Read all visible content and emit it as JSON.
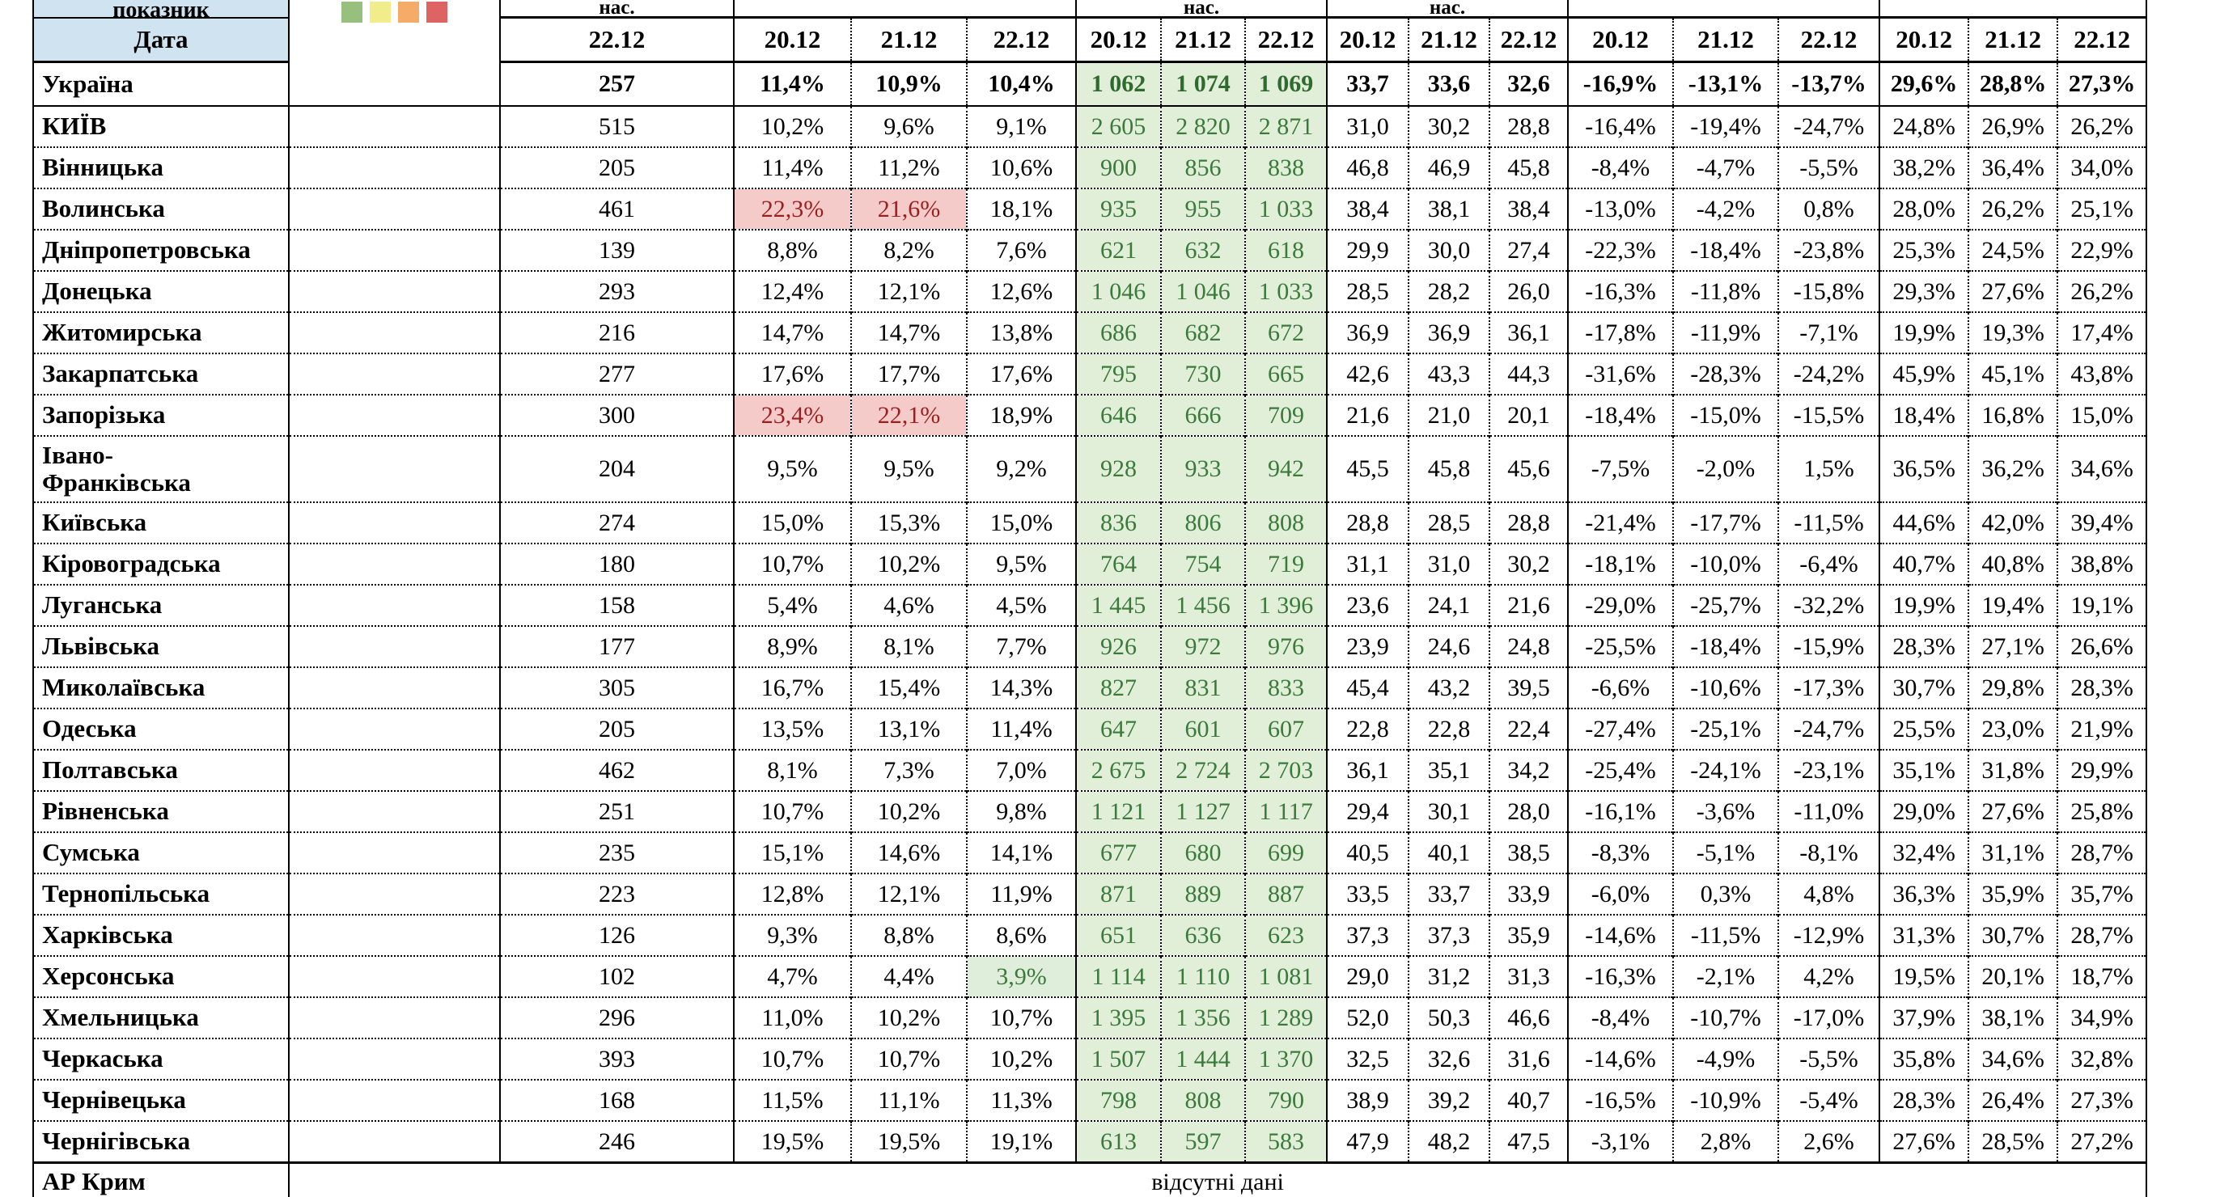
{
  "header": {
    "corner_top": "показник",
    "corner_bottom": "Дата",
    "groups": [
      {
        "label": "нас.",
        "dates": [
          "22.12"
        ]
      },
      {
        "label": "",
        "dates": [
          "20.12",
          "21.12",
          "22.12"
        ]
      },
      {
        "label": "нас.",
        "dates": [
          "20.12",
          "21.12",
          "22.12"
        ]
      },
      {
        "label": "нас.",
        "dates": [
          "20.12",
          "21.12",
          "22.12"
        ]
      },
      {
        "label": "",
        "dates": [
          "20.12",
          "21.12",
          "22.12"
        ]
      },
      {
        "label": "",
        "dates": [
          "20.12",
          "21.12",
          "22.12"
        ]
      }
    ],
    "legend_colors": [
      "#97bf7e",
      "#f0ed8a",
      "#f5ac68",
      "#dd6462"
    ],
    "legend_names": [
      "green",
      "yellow",
      "orange",
      "red"
    ]
  },
  "status_colors": {
    "yellow": "#f3ef7d",
    "red": "#d9605e",
    "none": "#ffffff"
  },
  "table": {
    "rows": [
      {
        "name": "Україна",
        "status": "none",
        "c3": "257",
        "p": [
          "11,4%",
          "10,9%",
          "10,4%"
        ],
        "p_style": [
          "",
          "",
          ""
        ],
        "g": [
          "1 062",
          "1 074",
          "1 069"
        ],
        "m": [
          "33,7",
          "33,6",
          "32,6"
        ],
        "n": [
          "-16,9%",
          "-13,1%",
          "-13,7%"
        ],
        "l": [
          "29,6%",
          "28,8%",
          "27,3%"
        ]
      },
      {
        "name": "КИЇВ",
        "status": "yellow",
        "c3": "515",
        "p": [
          "10,2%",
          "9,6%",
          "9,1%"
        ],
        "p_style": [
          "",
          "",
          ""
        ],
        "g": [
          "2 605",
          "2 820",
          "2 871"
        ],
        "m": [
          "31,0",
          "30,2",
          "28,8"
        ],
        "n": [
          "-16,4%",
          "-19,4%",
          "-24,7%"
        ],
        "l": [
          "24,8%",
          "26,9%",
          "26,2%"
        ]
      },
      {
        "name": "Вінницька",
        "status": "yellow",
        "c3": "205",
        "p": [
          "11,4%",
          "11,2%",
          "10,6%"
        ],
        "p_style": [
          "",
          "",
          ""
        ],
        "g": [
          "900",
          "856",
          "838"
        ],
        "m": [
          "46,8",
          "46,9",
          "45,8"
        ],
        "n": [
          "-8,4%",
          "-4,7%",
          "-5,5%"
        ],
        "l": [
          "38,2%",
          "36,4%",
          "34,0%"
        ]
      },
      {
        "name": "Волинська",
        "status": "red",
        "c3": "461",
        "p": [
          "22,3%",
          "21,6%",
          "18,1%"
        ],
        "p_style": [
          "pink",
          "pink",
          ""
        ],
        "g": [
          "935",
          "955",
          "1 033"
        ],
        "m": [
          "38,4",
          "38,1",
          "38,4"
        ],
        "n": [
          "-13,0%",
          "-4,2%",
          "0,8%"
        ],
        "l": [
          "28,0%",
          "26,2%",
          "25,1%"
        ]
      },
      {
        "name": "Дніпропетровська",
        "status": "yellow",
        "c3": "139",
        "p": [
          "8,8%",
          "8,2%",
          "7,6%"
        ],
        "p_style": [
          "",
          "",
          ""
        ],
        "g": [
          "621",
          "632",
          "618"
        ],
        "m": [
          "29,9",
          "30,0",
          "27,4"
        ],
        "n": [
          "-22,3%",
          "-18,4%",
          "-23,8%"
        ],
        "l": [
          "25,3%",
          "24,5%",
          "22,9%"
        ]
      },
      {
        "name": "Донецька",
        "status": "yellow",
        "c3": "293",
        "p": [
          "12,4%",
          "12,1%",
          "12,6%"
        ],
        "p_style": [
          "",
          "",
          ""
        ],
        "g": [
          "1 046",
          "1 046",
          "1 033"
        ],
        "m": [
          "28,5",
          "28,2",
          "26,0"
        ],
        "n": [
          "-16,3%",
          "-11,8%",
          "-15,8%"
        ],
        "l": [
          "29,3%",
          "27,6%",
          "26,2%"
        ]
      },
      {
        "name": "Житомирська",
        "status": "yellow",
        "c3": "216",
        "p": [
          "14,7%",
          "14,7%",
          "13,8%"
        ],
        "p_style": [
          "",
          "",
          ""
        ],
        "g": [
          "686",
          "682",
          "672"
        ],
        "m": [
          "36,9",
          "36,9",
          "36,1"
        ],
        "n": [
          "-17,8%",
          "-11,9%",
          "-7,1%"
        ],
        "l": [
          "19,9%",
          "19,3%",
          "17,4%"
        ]
      },
      {
        "name": "Закарпатська",
        "status": "yellow",
        "c3": "277",
        "p": [
          "17,6%",
          "17,7%",
          "17,6%"
        ],
        "p_style": [
          "",
          "",
          ""
        ],
        "g": [
          "795",
          "730",
          "665"
        ],
        "m": [
          "42,6",
          "43,3",
          "44,3"
        ],
        "n": [
          "-31,6%",
          "-28,3%",
          "-24,2%"
        ],
        "l": [
          "45,9%",
          "45,1%",
          "43,8%"
        ]
      },
      {
        "name": "Запорізька",
        "status": "red",
        "c3": "300",
        "p": [
          "23,4%",
          "22,1%",
          "18,9%"
        ],
        "p_style": [
          "pink",
          "pink",
          ""
        ],
        "g": [
          "646",
          "666",
          "709"
        ],
        "m": [
          "21,6",
          "21,0",
          "20,1"
        ],
        "n": [
          "-18,4%",
          "-15,0%",
          "-15,5%"
        ],
        "l": [
          "18,4%",
          "16,8%",
          "15,0%"
        ]
      },
      {
        "name": "Івано-",
        "name2": "Франківська",
        "status": "yellow",
        "c3": "204",
        "p": [
          "9,5%",
          "9,5%",
          "9,2%"
        ],
        "p_style": [
          "",
          "",
          ""
        ],
        "g": [
          "928",
          "933",
          "942"
        ],
        "m": [
          "45,5",
          "45,8",
          "45,6"
        ],
        "n": [
          "-7,5%",
          "-2,0%",
          "1,5%"
        ],
        "l": [
          "36,5%",
          "36,2%",
          "34,6%"
        ]
      },
      {
        "name": "Київська",
        "status": "yellow",
        "c3": "274",
        "p": [
          "15,0%",
          "15,3%",
          "15,0%"
        ],
        "p_style": [
          "",
          "",
          ""
        ],
        "g": [
          "836",
          "806",
          "808"
        ],
        "m": [
          "28,8",
          "28,5",
          "28,8"
        ],
        "n": [
          "-21,4%",
          "-17,7%",
          "-11,5%"
        ],
        "l": [
          "44,6%",
          "42,0%",
          "39,4%"
        ]
      },
      {
        "name": "Кіровоградська",
        "status": "yellow",
        "c3": "180",
        "p": [
          "10,7%",
          "10,2%",
          "9,5%"
        ],
        "p_style": [
          "",
          "",
          ""
        ],
        "g": [
          "764",
          "754",
          "719"
        ],
        "m": [
          "31,1",
          "31,0",
          "30,2"
        ],
        "n": [
          "-18,1%",
          "-10,0%",
          "-6,4%"
        ],
        "l": [
          "40,7%",
          "40,8%",
          "38,8%"
        ]
      },
      {
        "name": "Луганська",
        "status": "yellow",
        "c3": "158",
        "p": [
          "5,4%",
          "4,6%",
          "4,5%"
        ],
        "p_style": [
          "",
          "",
          ""
        ],
        "g": [
          "1 445",
          "1 456",
          "1 396"
        ],
        "m": [
          "23,6",
          "24,1",
          "21,6"
        ],
        "n": [
          "-29,0%",
          "-25,7%",
          "-32,2%"
        ],
        "l": [
          "19,9%",
          "19,4%",
          "19,1%"
        ]
      },
      {
        "name": "Львівська",
        "status": "yellow",
        "c3": "177",
        "p": [
          "8,9%",
          "8,1%",
          "7,7%"
        ],
        "p_style": [
          "",
          "",
          ""
        ],
        "g": [
          "926",
          "972",
          "976"
        ],
        "m": [
          "23,9",
          "24,6",
          "24,8"
        ],
        "n": [
          "-25,5%",
          "-18,4%",
          "-15,9%"
        ],
        "l": [
          "28,3%",
          "27,1%",
          "26,6%"
        ]
      },
      {
        "name": "Миколаївська",
        "status": "yellow",
        "c3": "305",
        "p": [
          "16,7%",
          "15,4%",
          "14,3%"
        ],
        "p_style": [
          "",
          "",
          ""
        ],
        "g": [
          "827",
          "831",
          "833"
        ],
        "m": [
          "45,4",
          "43,2",
          "39,5"
        ],
        "n": [
          "-6,6%",
          "-10,6%",
          "-17,3%"
        ],
        "l": [
          "30,7%",
          "29,8%",
          "28,3%"
        ]
      },
      {
        "name": "Одеська",
        "status": "yellow",
        "c3": "205",
        "p": [
          "13,5%",
          "13,1%",
          "11,4%"
        ],
        "p_style": [
          "",
          "",
          ""
        ],
        "g": [
          "647",
          "601",
          "607"
        ],
        "m": [
          "22,8",
          "22,8",
          "22,4"
        ],
        "n": [
          "-27,4%",
          "-25,1%",
          "-24,7%"
        ],
        "l": [
          "25,5%",
          "23,0%",
          "21,9%"
        ]
      },
      {
        "name": "Полтавська",
        "status": "yellow",
        "c3": "462",
        "p": [
          "8,1%",
          "7,3%",
          "7,0%"
        ],
        "p_style": [
          "",
          "",
          ""
        ],
        "g": [
          "2 675",
          "2 724",
          "2 703"
        ],
        "m": [
          "36,1",
          "35,1",
          "34,2"
        ],
        "n": [
          "-25,4%",
          "-24,1%",
          "-23,1%"
        ],
        "l": [
          "35,1%",
          "31,8%",
          "29,9%"
        ]
      },
      {
        "name": "Рівненська",
        "status": "yellow",
        "c3": "251",
        "p": [
          "10,7%",
          "10,2%",
          "9,8%"
        ],
        "p_style": [
          "",
          "",
          ""
        ],
        "g": [
          "1 121",
          "1 127",
          "1 117"
        ],
        "m": [
          "29,4",
          "30,1",
          "28,0"
        ],
        "n": [
          "-16,1%",
          "-3,6%",
          "-11,0%"
        ],
        "l": [
          "29,0%",
          "27,6%",
          "25,8%"
        ]
      },
      {
        "name": "Сумська",
        "status": "yellow",
        "c3": "235",
        "p": [
          "15,1%",
          "14,6%",
          "14,1%"
        ],
        "p_style": [
          "",
          "",
          ""
        ],
        "g": [
          "677",
          "680",
          "699"
        ],
        "m": [
          "40,5",
          "40,1",
          "38,5"
        ],
        "n": [
          "-8,3%",
          "-5,1%",
          "-8,1%"
        ],
        "l": [
          "32,4%",
          "31,1%",
          "28,7%"
        ]
      },
      {
        "name": "Тернопільська",
        "status": "yellow",
        "c3": "223",
        "p": [
          "12,8%",
          "12,1%",
          "11,9%"
        ],
        "p_style": [
          "",
          "",
          ""
        ],
        "g": [
          "871",
          "889",
          "887"
        ],
        "m": [
          "33,5",
          "33,7",
          "33,9"
        ],
        "n": [
          "-6,0%",
          "0,3%",
          "4,8%"
        ],
        "l": [
          "36,3%",
          "35,9%",
          "35,7%"
        ]
      },
      {
        "name": "Харківська",
        "status": "yellow",
        "c3": "126",
        "p": [
          "9,3%",
          "8,8%",
          "8,6%"
        ],
        "p_style": [
          "",
          "",
          ""
        ],
        "g": [
          "651",
          "636",
          "623"
        ],
        "m": [
          "37,3",
          "37,3",
          "35,9"
        ],
        "n": [
          "-14,6%",
          "-11,5%",
          "-12,9%"
        ],
        "l": [
          "31,3%",
          "30,7%",
          "28,7%"
        ]
      },
      {
        "name": "Херсонська",
        "status": "yellow",
        "c3": "102",
        "p": [
          "4,7%",
          "4,4%",
          "3,9%"
        ],
        "p_style": [
          "",
          "",
          "green"
        ],
        "g": [
          "1 114",
          "1 110",
          "1 081"
        ],
        "m": [
          "29,0",
          "31,2",
          "31,3"
        ],
        "n": [
          "-16,3%",
          "-2,1%",
          "4,2%"
        ],
        "l": [
          "19,5%",
          "20,1%",
          "18,7%"
        ]
      },
      {
        "name": "Хмельницька",
        "status": "yellow",
        "c3": "296",
        "p": [
          "11,0%",
          "10,2%",
          "10,7%"
        ],
        "p_style": [
          "",
          "",
          ""
        ],
        "g": [
          "1 395",
          "1 356",
          "1 289"
        ],
        "m": [
          "52,0",
          "50,3",
          "46,6"
        ],
        "n": [
          "-8,4%",
          "-10,7%",
          "-17,0%"
        ],
        "l": [
          "37,9%",
          "38,1%",
          "34,9%"
        ]
      },
      {
        "name": "Черкаська",
        "status": "yellow",
        "c3": "393",
        "p": [
          "10,7%",
          "10,7%",
          "10,2%"
        ],
        "p_style": [
          "",
          "",
          ""
        ],
        "g": [
          "1 507",
          "1 444",
          "1 370"
        ],
        "m": [
          "32,5",
          "32,6",
          "31,6"
        ],
        "n": [
          "-14,6%",
          "-4,9%",
          "-5,5%"
        ],
        "l": [
          "35,8%",
          "34,6%",
          "32,8%"
        ]
      },
      {
        "name": "Чернівецька",
        "status": "yellow",
        "c3": "168",
        "p": [
          "11,5%",
          "11,1%",
          "11,3%"
        ],
        "p_style": [
          "",
          "",
          ""
        ],
        "g": [
          "798",
          "808",
          "790"
        ],
        "m": [
          "38,9",
          "39,2",
          "40,7"
        ],
        "n": [
          "-16,5%",
          "-10,9%",
          "-5,4%"
        ],
        "l": [
          "28,3%",
          "26,4%",
          "27,3%"
        ]
      },
      {
        "name": "Чернігівська",
        "status": "yellow",
        "c3": "246",
        "p": [
          "19,5%",
          "19,5%",
          "19,1%"
        ],
        "p_style": [
          "",
          "",
          ""
        ],
        "g": [
          "613",
          "597",
          "583"
        ],
        "m": [
          "47,9",
          "48,2",
          "47,5"
        ],
        "n": [
          "-3,1%",
          "2,8%",
          "2,6%"
        ],
        "l": [
          "27,6%",
          "28,5%",
          "27,2%"
        ]
      },
      {
        "name": "АР Крим",
        "status": "merged",
        "note": "відсутні дані"
      }
    ]
  }
}
